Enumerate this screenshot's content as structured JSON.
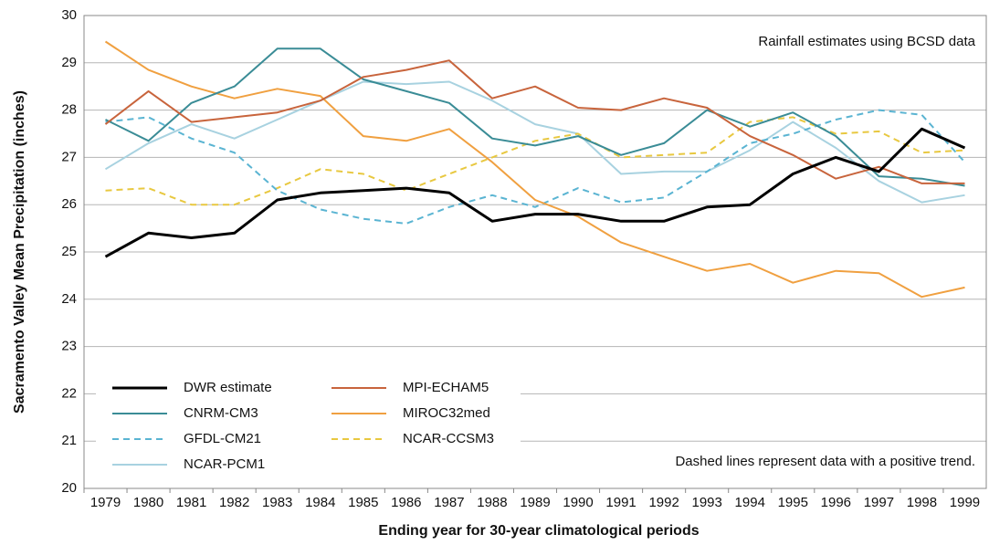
{
  "chart_data": {
    "type": "line",
    "categories": [
      "1979",
      "1980",
      "1981",
      "1982",
      "1983",
      "1984",
      "1985",
      "1986",
      "1987",
      "1988",
      "1989",
      "1990",
      "1991",
      "1992",
      "1993",
      "1994",
      "1995",
      "1996",
      "1997",
      "1998",
      "1999"
    ],
    "xlabel": "Ending year for 30-year climatological periods",
    "ylabel": "Sacramento Valley Mean Precipitation (inches)",
    "ylim": [
      20,
      30
    ],
    "yticks": [
      20,
      21,
      22,
      23,
      24,
      25,
      26,
      27,
      28,
      29,
      30
    ],
    "grid": true,
    "legend": "lower left",
    "annotations": [
      "Rainfall estimates using BCSD data",
      "Dashed lines represent data with a positive trend."
    ],
    "series": [
      {
        "name": "DWR estimate",
        "color": "#000000",
        "width": 3,
        "dashed": false,
        "values": [
          24.9,
          25.4,
          25.3,
          25.4,
          26.1,
          26.25,
          26.3,
          26.35,
          26.25,
          25.65,
          25.8,
          25.8,
          25.65,
          25.65,
          25.95,
          26.0,
          26.65,
          27.0,
          26.7,
          27.6,
          27.2
        ]
      },
      {
        "name": "MPI-ECHAM5",
        "color": "#c8643c",
        "width": 2,
        "dashed": false,
        "values": [
          27.7,
          28.4,
          27.75,
          27.85,
          27.95,
          28.2,
          28.7,
          28.85,
          29.05,
          28.25,
          28.5,
          28.05,
          28.0,
          28.25,
          28.05,
          27.45,
          27.05,
          26.55,
          26.8,
          26.45,
          26.45
        ]
      },
      {
        "name": "CNRM-CM3",
        "color": "#3a8c96",
        "width": 2,
        "dashed": false,
        "values": [
          27.8,
          27.35,
          28.15,
          28.5,
          29.3,
          29.3,
          28.65,
          28.4,
          28.15,
          27.4,
          27.25,
          27.45,
          27.05,
          27.3,
          28.0,
          27.65,
          27.95,
          27.45,
          26.6,
          26.55,
          26.4
        ]
      },
      {
        "name": "MIROC32med",
        "color": "#f0a040",
        "width": 2,
        "dashed": false,
        "values": [
          29.45,
          28.85,
          28.5,
          28.25,
          28.45,
          28.3,
          27.45,
          27.35,
          27.6,
          26.9,
          26.1,
          25.75,
          25.2,
          24.9,
          24.6,
          24.75,
          24.35,
          24.6,
          24.55,
          24.05,
          24.25
        ]
      },
      {
        "name": "GFDL-CM21",
        "color": "#5ab4d2",
        "width": 2,
        "dashed": true,
        "values": [
          27.75,
          27.85,
          27.4,
          27.1,
          26.3,
          25.9,
          25.7,
          25.6,
          25.95,
          26.2,
          25.95,
          26.35,
          26.05,
          26.15,
          26.7,
          27.3,
          27.5,
          27.8,
          28.0,
          27.9,
          26.9
        ]
      },
      {
        "name": "NCAR-CCSM3",
        "color": "#e8c840",
        "width": 2,
        "dashed": true,
        "values": [
          26.3,
          26.35,
          26.0,
          26.0,
          26.35,
          26.75,
          26.65,
          26.3,
          26.65,
          27.0,
          27.35,
          27.5,
          27.0,
          27.05,
          27.1,
          27.75,
          27.85,
          27.5,
          27.55,
          27.1,
          27.15
        ]
      },
      {
        "name": "NCAR-PCM1",
        "color": "#a8d2e0",
        "width": 2,
        "dashed": false,
        "values": [
          26.75,
          27.3,
          27.7,
          27.4,
          27.8,
          28.2,
          28.6,
          28.55,
          28.6,
          28.2,
          27.7,
          27.5,
          26.65,
          26.7,
          26.7,
          27.15,
          27.75,
          27.2,
          26.5,
          26.05,
          26.2
        ]
      }
    ]
  }
}
